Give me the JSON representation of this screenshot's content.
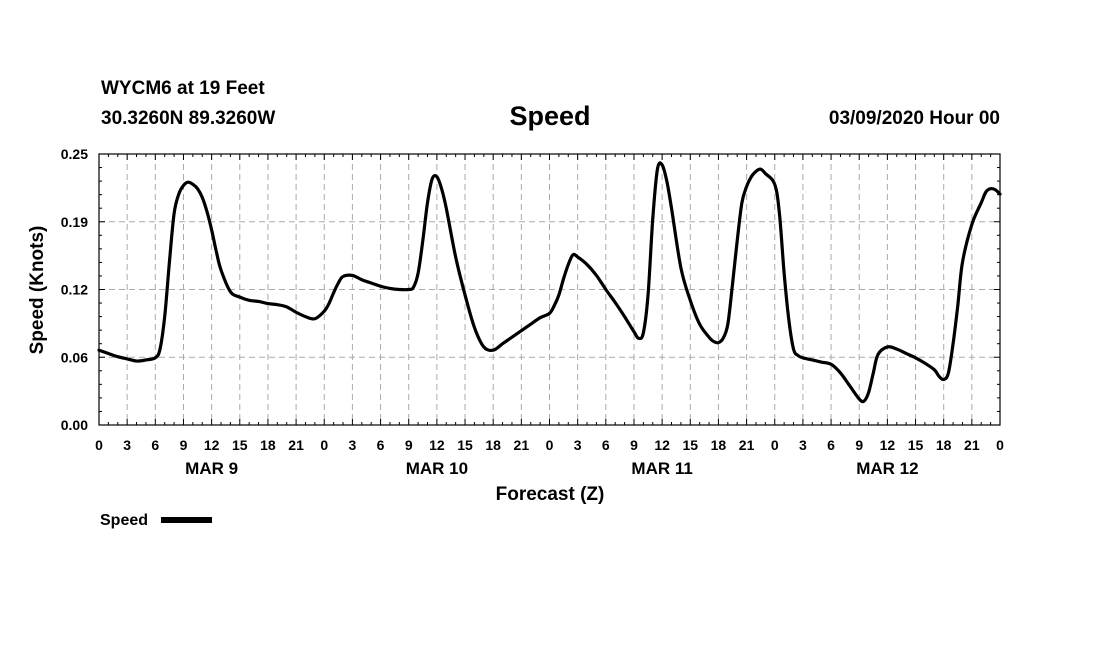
{
  "header": {
    "station": "WYCM6 at 19 Feet",
    "location": "30.3260N 89.3260W",
    "datetime": "03/09/2020 Hour 00"
  },
  "chart_data": {
    "type": "line",
    "title": "Speed",
    "xlabel": "Forecast (Z)",
    "ylabel": "Speed (Knots)",
    "ylim": [
      0,
      0.25
    ],
    "xlim": [
      0,
      96
    ],
    "grid": true,
    "y_ticks": [
      "0.00",
      "0.06",
      "0.12",
      "0.19",
      "0.25"
    ],
    "y_tick_values": [
      0,
      0.0625,
      0.125,
      0.1875,
      0.25
    ],
    "x_tick_labels": [
      "0",
      "3",
      "6",
      "9",
      "12",
      "15",
      "18",
      "21",
      "0",
      "3",
      "6",
      "9",
      "12",
      "15",
      "18",
      "21",
      "0",
      "3",
      "6",
      "9",
      "12",
      "15",
      "18",
      "21",
      "0",
      "3",
      "6",
      "9",
      "12",
      "15",
      "18",
      "21",
      "0"
    ],
    "day_labels": [
      {
        "label": "MAR 9",
        "hour": 12
      },
      {
        "label": "MAR 10",
        "hour": 36
      },
      {
        "label": "MAR 11",
        "hour": 60
      },
      {
        "label": "MAR 12",
        "hour": 84
      }
    ],
    "legend": {
      "label": "Speed",
      "placement": "bottom-left"
    },
    "series": [
      {
        "name": "Speed",
        "color": "#000000",
        "x": [
          0,
          1,
          2,
          3,
          4,
          5,
          6,
          6.5,
          7,
          7.5,
          8,
          8.5,
          9,
          9.5,
          10,
          10.5,
          11,
          11.5,
          12,
          12.5,
          13,
          14,
          15,
          16,
          17,
          18,
          19,
          20,
          21,
          22,
          23,
          24,
          24.5,
          25,
          25.5,
          26,
          27,
          28,
          29,
          30,
          31,
          32,
          33,
          33.5,
          34,
          34.5,
          35,
          35.5,
          36,
          36.5,
          37,
          38,
          39,
          40,
          41,
          42,
          43,
          44,
          45,
          46,
          47,
          48,
          48.5,
          49,
          49.5,
          50,
          50.5,
          51,
          52,
          53,
          54,
          55,
          56,
          57,
          57.5,
          58,
          58.5,
          59,
          59.5,
          60,
          60.5,
          61,
          62,
          63,
          64,
          65,
          65.5,
          66,
          66.5,
          67,
          67.5,
          68,
          68.5,
          69,
          69.5,
          70,
          70.5,
          71,
          72,
          72.5,
          73,
          73.5,
          74,
          74.5,
          75,
          76,
          77,
          78,
          79,
          80,
          81,
          81.5,
          82,
          82.5,
          83,
          84,
          85,
          86,
          87,
          88,
          89,
          89.5,
          90,
          90.5,
          91,
          91.5,
          92,
          93,
          94,
          94.5,
          95,
          95.5,
          96
        ],
        "values": [
          0.069,
          0.066,
          0.063,
          0.061,
          0.059,
          0.06,
          0.062,
          0.07,
          0.1,
          0.15,
          0.195,
          0.213,
          0.221,
          0.224,
          0.222,
          0.218,
          0.21,
          0.197,
          0.18,
          0.16,
          0.143,
          0.123,
          0.118,
          0.115,
          0.114,
          0.112,
          0.111,
          0.109,
          0.104,
          0.1,
          0.098,
          0.105,
          0.112,
          0.122,
          0.131,
          0.137,
          0.138,
          0.134,
          0.131,
          0.128,
          0.126,
          0.125,
          0.125,
          0.127,
          0.14,
          0.17,
          0.205,
          0.227,
          0.229,
          0.218,
          0.2,
          0.155,
          0.12,
          0.09,
          0.072,
          0.069,
          0.075,
          0.081,
          0.087,
          0.093,
          0.099,
          0.103,
          0.11,
          0.12,
          0.135,
          0.148,
          0.157,
          0.155,
          0.148,
          0.138,
          0.125,
          0.113,
          0.1,
          0.086,
          0.08,
          0.085,
          0.12,
          0.19,
          0.236,
          0.24,
          0.225,
          0.2,
          0.145,
          0.115,
          0.093,
          0.081,
          0.077,
          0.076,
          0.08,
          0.093,
          0.13,
          0.17,
          0.205,
          0.22,
          0.229,
          0.234,
          0.236,
          0.232,
          0.222,
          0.195,
          0.14,
          0.097,
          0.07,
          0.064,
          0.062,
          0.06,
          0.058,
          0.056,
          0.048,
          0.036,
          0.024,
          0.022,
          0.03,
          0.048,
          0.065,
          0.072,
          0.07,
          0.066,
          0.062,
          0.057,
          0.051,
          0.045,
          0.042,
          0.048,
          0.075,
          0.11,
          0.15,
          0.185,
          0.205,
          0.215,
          0.218,
          0.217,
          0.213
        ]
      }
    ]
  }
}
